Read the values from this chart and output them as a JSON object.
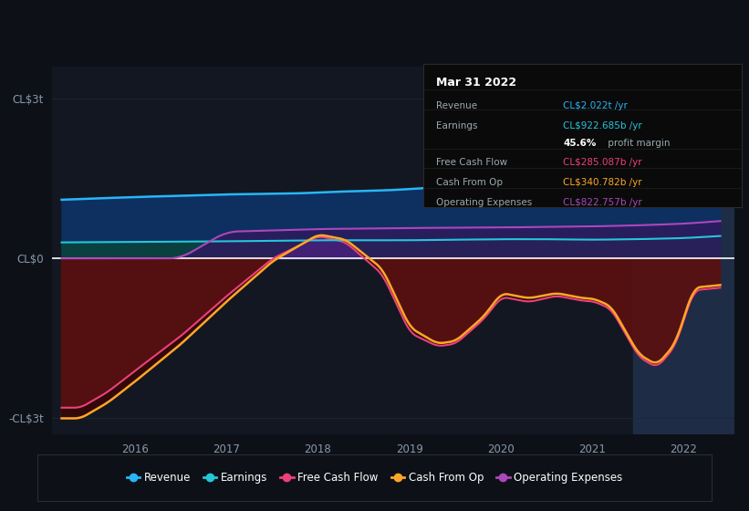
{
  "bg_color": "#0d1117",
  "plot_bg_color": "#0d1117",
  "chart_area_color": "#131722",
  "title": "Mar 31 2022",
  "ylabel_top": "CL$3t",
  "ylabel_bottom": "-CL$3t",
  "ylabel_zero": "CL$0",
  "ylim": [
    -3.3,
    3.6
  ],
  "xlim": [
    2015.1,
    2022.55
  ],
  "xticks": [
    2016,
    2017,
    2018,
    2019,
    2020,
    2021,
    2022
  ],
  "highlight_start": 2021.45,
  "highlight_end": 2022.55,
  "highlight_color": "#1e2d45",
  "zero_line_color": "#ffffff",
  "grid_color": "#1e2535",
  "colors": {
    "revenue": "#29b6f6",
    "earnings": "#26c6da",
    "free_cash_flow": "#ec407a",
    "cash_from_op": "#ffa726",
    "operating_expenses": "#ab47bc"
  },
  "legend": [
    {
      "label": "Revenue",
      "color": "#29b6f6"
    },
    {
      "label": "Earnings",
      "color": "#26c6da"
    },
    {
      "label": "Free Cash Flow",
      "color": "#ec407a"
    },
    {
      "label": "Cash From Op",
      "color": "#ffa726"
    },
    {
      "label": "Operating Expenses",
      "color": "#ab47bc"
    }
  ],
  "tooltip": {
    "title": "Mar 31 2022",
    "rows": [
      {
        "label": "Revenue",
        "value": "CL$2.022t /yr",
        "value_color": "#29b6f6"
      },
      {
        "label": "Earnings",
        "value": "CL$922.685b /yr",
        "value_color": "#26c6da"
      },
      {
        "label": "",
        "value": "45.6%",
        "value_suffix": " profit margin",
        "value_color": "#ffffff"
      },
      {
        "label": "Free Cash Flow",
        "value": "CL$285.087b /yr",
        "value_color": "#ec407a"
      },
      {
        "label": "Cash From Op",
        "value": "CL$340.782b /yr",
        "value_color": "#ffa726"
      },
      {
        "label": "Operating Expenses",
        "value": "CL$822.757b /yr",
        "value_color": "#ab47bc"
      }
    ]
  }
}
